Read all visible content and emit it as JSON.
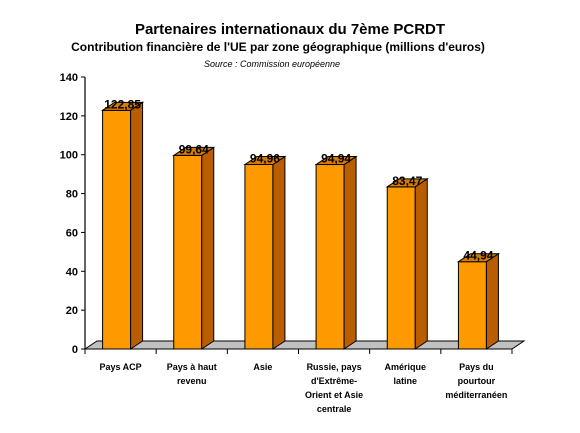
{
  "chart_data": {
    "type": "bar",
    "title": "Partenaires internationaux du 7ème PCRDT",
    "subtitle": "Contribution financière de l'UE par zone géographique (millions d'euros)",
    "source": "Source : Commission européenne",
    "categories": [
      [
        "Pays ACP"
      ],
      [
        "Pays à haut",
        "revenu"
      ],
      [
        "Asie"
      ],
      [
        "Russie, pays",
        "d'Extrême-",
        "Orient et Asie",
        "centrale"
      ],
      [
        "Amérique",
        "latine"
      ],
      [
        "Pays du",
        "pourtour",
        "méditerranéen"
      ]
    ],
    "values": [
      122.85,
      99.64,
      94.96,
      94.94,
      83.47,
      44.94
    ],
    "value_labels": [
      "122,85",
      "99,64",
      "94,96",
      "94,94",
      "83,47",
      "44,94"
    ],
    "ylim": [
      0,
      140
    ],
    "yticks": [
      0,
      20,
      40,
      60,
      80,
      100,
      120,
      140
    ],
    "grid": false,
    "legend": "none",
    "colors": {
      "bar_front": "#ff9900",
      "bar_side": "#b85e00",
      "bar_top": "#d67a00",
      "floor": "#c0c0c0",
      "outline": "#000000"
    }
  }
}
